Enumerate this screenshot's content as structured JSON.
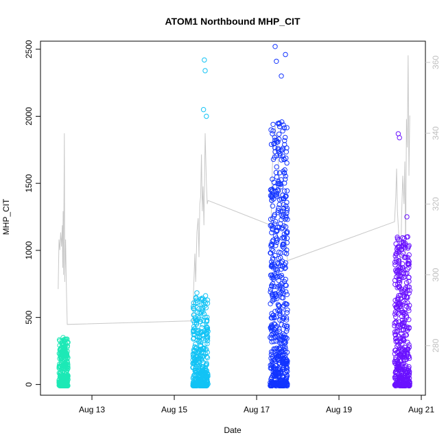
{
  "chart_data": {
    "type": "scatter",
    "title": "ATOM1 Northbound MHP_CIT",
    "xlabel": "Date",
    "ylabel": "MHP_CIT",
    "x_ticks": [
      "Aug 13",
      "Aug 15",
      "Aug 17",
      "Aug 19",
      "Aug 21"
    ],
    "x_tick_days": [
      13,
      15,
      17,
      19,
      21
    ],
    "xlim_days": [
      11.75,
      21.1
    ],
    "y_ticks": [
      0,
      500,
      1000,
      1500,
      2000,
      2500
    ],
    "ylim": [
      -80,
      2560
    ],
    "y2_ticks": [
      280,
      300,
      320,
      340,
      360
    ],
    "y2lim": [
      266,
      366
    ],
    "y2_color": "#c8c8c8",
    "points_clusters": [
      {
        "center_day": 12.3,
        "range_days": [
          12.2,
          12.42
        ],
        "color": "#1de9b6",
        "y_max_typical": 330,
        "outliers": [
          [
            12.3,
            350
          ]
        ]
      },
      {
        "center_day": 15.65,
        "range_days": [
          15.45,
          15.82
        ],
        "color": "#12c3f5",
        "y_max_typical": 680,
        "outliers": [
          [
            15.73,
            2420
          ],
          [
            15.75,
            2340
          ],
          [
            15.78,
            2000
          ],
          [
            15.71,
            2050
          ]
        ]
      },
      {
        "center_day": 17.55,
        "range_days": [
          17.33,
          17.75
        ],
        "color": "#1234ff",
        "y_max_typical": 1950,
        "outliers": [
          [
            17.45,
            2520
          ],
          [
            17.7,
            2460
          ],
          [
            17.48,
            2410
          ],
          [
            17.6,
            2300
          ]
        ]
      },
      {
        "center_day": 20.55,
        "range_days": [
          20.35,
          20.72
        ],
        "color": "#6a12ff",
        "y_max_typical": 1100,
        "outliers": [
          [
            20.44,
            1870
          ],
          [
            20.47,
            1840
          ],
          [
            20.65,
            1250
          ]
        ]
      }
    ],
    "secondary_line": {
      "name": "",
      "color": "#c8c8c8",
      "points": [
        [
          12.18,
          296
        ],
        [
          12.2,
          310
        ],
        [
          12.22,
          307
        ],
        [
          12.24,
          312
        ],
        [
          12.26,
          308
        ],
        [
          12.28,
          314
        ],
        [
          12.29,
          302
        ],
        [
          12.3,
          318
        ],
        [
          12.31,
          300
        ],
        [
          12.33,
          340
        ],
        [
          12.34,
          298
        ],
        [
          12.36,
          310
        ],
        [
          12.38,
          296
        ],
        [
          12.4,
          286
        ],
        [
          15.45,
          287
        ],
        [
          15.47,
          296
        ],
        [
          15.5,
          306
        ],
        [
          15.52,
          298
        ],
        [
          15.55,
          312
        ],
        [
          15.58,
          316
        ],
        [
          15.6,
          305
        ],
        [
          15.62,
          320
        ],
        [
          15.64,
          322
        ],
        [
          15.66,
          334
        ],
        [
          15.68,
          318
        ],
        [
          15.7,
          325
        ],
        [
          15.72,
          314
        ],
        [
          15.75,
          340
        ],
        [
          15.78,
          326
        ],
        [
          15.8,
          320
        ],
        [
          15.82,
          321
        ],
        [
          17.35,
          314
        ],
        [
          17.38,
          330
        ],
        [
          17.42,
          338
        ],
        [
          17.45,
          342
        ],
        [
          17.5,
          336
        ],
        [
          17.55,
          328
        ],
        [
          17.6,
          322
        ],
        [
          17.65,
          318
        ],
        [
          17.7,
          312
        ],
        [
          17.75,
          304
        ],
        [
          20.35,
          315
        ],
        [
          20.38,
          322
        ],
        [
          20.4,
          330
        ],
        [
          20.42,
          318
        ],
        [
          20.45,
          312
        ],
        [
          20.5,
          302
        ],
        [
          20.52,
          316
        ],
        [
          20.55,
          328
        ],
        [
          20.58,
          320
        ],
        [
          20.6,
          332
        ],
        [
          20.62,
          306
        ],
        [
          20.64,
          344
        ],
        [
          20.66,
          336
        ],
        [
          20.68,
          362
        ],
        [
          20.7,
          328
        ],
        [
          20.72,
          345
        ]
      ]
    }
  }
}
